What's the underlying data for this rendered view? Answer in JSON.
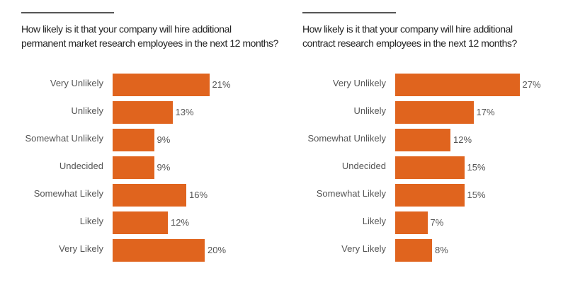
{
  "chart_data": [
    {
      "type": "bar",
      "orientation": "horizontal",
      "title": "How likely is it that your company will hire additional permanent market research employees in the next 12 months?",
      "title_lines": [
        "How likely is it that your company will hire additional",
        "permanent market research employees in the next 12 months?"
      ],
      "categories": [
        "Very Unlikely",
        "Unlikely",
        "Somewhat Unlikely",
        "Undecided",
        "Somewhat Likely",
        "Likely",
        "Very Likely"
      ],
      "values": [
        21,
        13,
        9,
        9,
        16,
        12,
        20
      ],
      "labels": [
        "21%",
        "13%",
        "9%",
        "9%",
        "16%",
        "12%",
        "20%"
      ],
      "unit": "%",
      "grid": false,
      "color": "#e0641e"
    },
    {
      "type": "bar",
      "orientation": "horizontal",
      "title": "How likely is it that your company will hire additional contract research employees in the next 12 months?",
      "title_lines": [
        "How likely is it that your company will hire additional",
        "contract research employees in the next 12 months?"
      ],
      "categories": [
        "Very Unlikely",
        "Unlikely",
        "Somewhat Unlikely",
        "Undecided",
        "Somewhat Likely",
        "Likely",
        "Very Likely"
      ],
      "values": [
        27,
        17,
        12,
        15,
        15,
        7,
        8
      ],
      "labels": [
        "27%",
        "17%",
        "12%",
        "15%",
        "15%",
        "7%",
        "8%"
      ],
      "unit": "%",
      "grid": false,
      "color": "#e0641e"
    }
  ]
}
